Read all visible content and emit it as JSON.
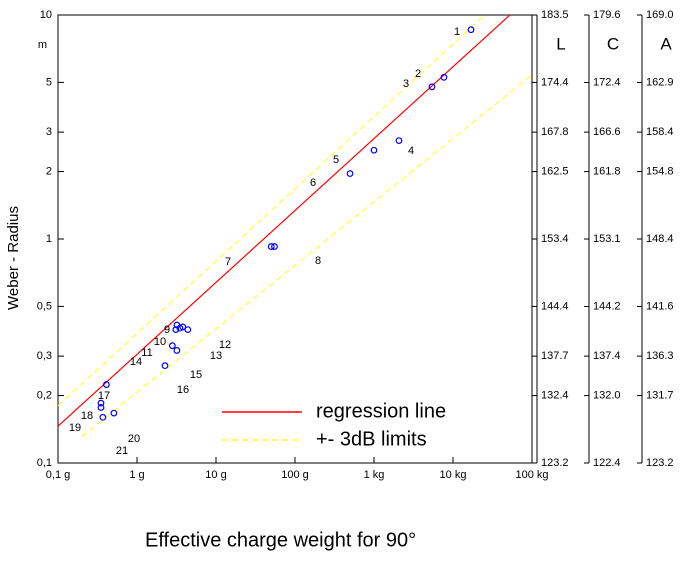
{
  "chart_data": {
    "type": "scatter",
    "ylabel": "Weber - Radius",
    "xlabel": "Effective charge weight for 90°",
    "y_unit": "m",
    "xscale": "log",
    "yscale": "log",
    "xlim": [
      0.1,
      100000
    ],
    "ylim": [
      0.1,
      10
    ],
    "xticks": [
      {
        "value": 0.1,
        "label": "0,1 g"
      },
      {
        "value": 1,
        "label": "1 g"
      },
      {
        "value": 10,
        "label": "10 g"
      },
      {
        "value": 100,
        "label": "100 g"
      },
      {
        "value": 1000,
        "label": "1 kg"
      },
      {
        "value": 10000,
        "label": "10 kg"
      },
      {
        "value": 100000,
        "label": "100 kg"
      }
    ],
    "yticks": [
      {
        "value": 0.1,
        "label": "0,1"
      },
      {
        "value": 0.2,
        "label": "0,2"
      },
      {
        "value": 0.3,
        "label": "0,3"
      },
      {
        "value": 0.5,
        "label": "0,5"
      },
      1,
      2,
      3,
      5,
      10
    ],
    "secondary_axes": [
      {
        "name": "L",
        "ticks": [
          123.2,
          132.4,
          137.7,
          144.4,
          153.4,
          162.5,
          167.8,
          174.4,
          183.5
        ]
      },
      {
        "name": "C",
        "ticks": [
          122.4,
          {
            "value": 132,
            "label": "132.0"
          },
          137.4,
          144.2,
          153.1,
          161.8,
          166.6,
          172.4,
          179.6
        ]
      },
      {
        "name": "A",
        "ticks": [
          123.2,
          131.7,
          136.3,
          141.6,
          148.4,
          154.8,
          158.4,
          162.9,
          {
            "value": 169,
            "label": "169.0"
          }
        ]
      }
    ],
    "points": {
      "color": "#0000ff",
      "labels": [
        "1",
        "2",
        "3",
        "4",
        "5",
        "6",
        "7",
        "8",
        "9",
        "10",
        "11",
        "12",
        "13",
        "14",
        "15",
        "16",
        "17",
        "18",
        "19",
        "20",
        "21"
      ],
      "x": [
        16900,
        7690,
        5420,
        2070,
        1000,
        497,
        50,
        55,
        3.2,
        3.5,
        3.8,
        4.4,
        3.1,
        2.8,
        3.2,
        2.26,
        0.41,
        0.35,
        0.35,
        0.51,
        0.37
      ],
      "values": [
        8.6,
        5.27,
        4.78,
        2.75,
        2.49,
        1.96,
        0.925,
        0.925,
        0.413,
        0.4,
        0.405,
        0.394,
        0.394,
        0.334,
        0.318,
        0.272,
        0.224,
        0.185,
        0.177,
        0.167,
        0.16
      ]
    },
    "series": [
      {
        "name": "regression line",
        "color": "#ff0000",
        "dash": false,
        "x": [
          0.1,
          52500
        ],
        "values": [
          0.146,
          10
        ]
      },
      {
        "name": "+- 3dB limits",
        "color": "#ffff33",
        "dash": true,
        "x": [
          0.1,
          25400
        ],
        "values": [
          0.18,
          10
        ]
      },
      {
        "name": null,
        "color": "#ffff33",
        "dash": true,
        "x": [
          0.2,
          100000
        ],
        "values": [
          0.131,
          5.4
        ]
      }
    ]
  }
}
